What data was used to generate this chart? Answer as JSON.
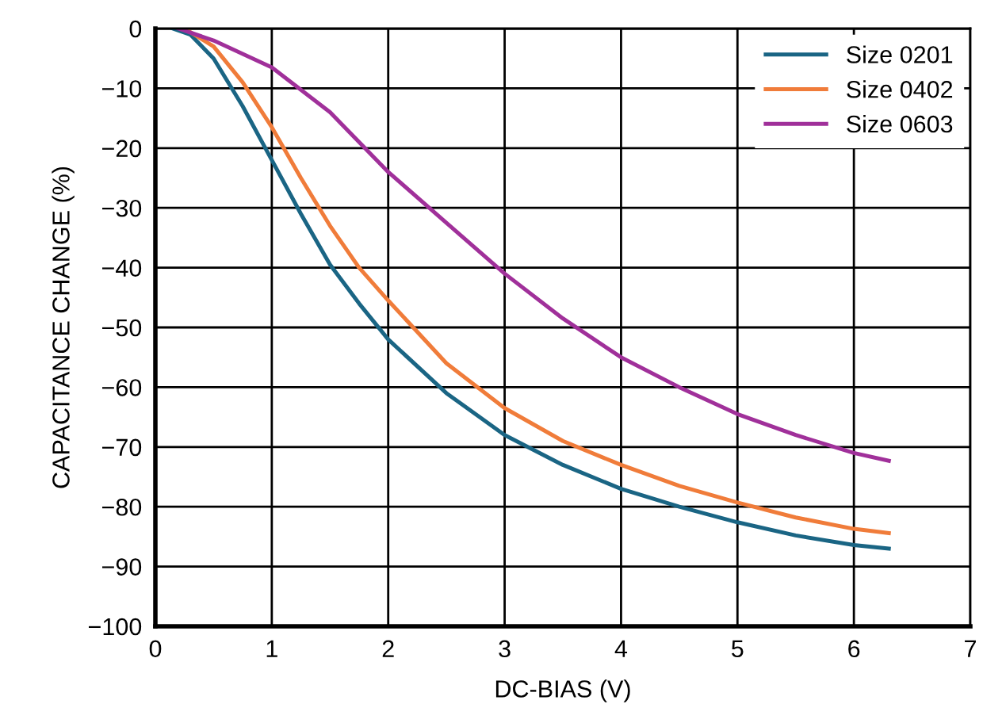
{
  "chart_data": {
    "type": "line",
    "xlabel": "DC-BIAS (V)",
    "ylabel": "CAPACITANCE CHANGE (%)",
    "xlim": [
      0,
      7
    ],
    "xticks": [
      0,
      1,
      2,
      3,
      4,
      5,
      6,
      7
    ],
    "ylim": [
      -100,
      0
    ],
    "yticks": [
      {
        "value": -100,
        "label": "−100"
      },
      {
        "value": -90,
        "label": "−90"
      },
      {
        "value": -80,
        "label": "−80"
      },
      {
        "value": -70,
        "label": "−70"
      },
      {
        "value": -60,
        "label": "−60"
      },
      {
        "value": -50,
        "label": "−50"
      },
      {
        "value": -40,
        "label": "−40"
      },
      {
        "value": -30,
        "label": "−30"
      },
      {
        "value": -20,
        "label": "−20"
      },
      {
        "value": -10,
        "label": "−10"
      },
      0
    ],
    "grid": true,
    "legend": "top right",
    "series": [
      {
        "name": "Size 0201",
        "color": "#1a6584",
        "x": [
          0.15,
          0.3,
          0.5,
          0.75,
          1,
          1.25,
          1.5,
          1.75,
          2,
          2.5,
          3,
          3.5,
          4,
          4.5,
          5,
          5.5,
          6,
          6.3
        ],
        "values": [
          0,
          -1,
          -5,
          -13,
          -22,
          -31,
          -39.5,
          -46,
          -52,
          -61,
          -68,
          -73,
          -77,
          -80,
          -82.6,
          -84.8,
          -86.4,
          -87
        ]
      },
      {
        "name": "Size 0402",
        "color": "#f07c3a",
        "x": [
          0.25,
          0.5,
          0.75,
          1,
          1.25,
          1.5,
          1.75,
          2,
          2.5,
          3,
          3.5,
          4,
          4.5,
          5,
          5.5,
          6,
          6.3
        ],
        "values": [
          0,
          -3,
          -9,
          -16.5,
          -25,
          -33,
          -40,
          -45.5,
          -56,
          -63.5,
          -69,
          -73,
          -76.5,
          -79.3,
          -81.8,
          -83.7,
          -84.4
        ]
      },
      {
        "name": "Size 0603",
        "color": "#a0309a",
        "x": [
          0.2,
          0.5,
          1,
          1.5,
          2,
          2.5,
          3,
          3.5,
          4,
          4.5,
          5,
          5.5,
          6,
          6.3
        ],
        "values": [
          0,
          -2,
          -6.5,
          -14,
          -24,
          -32.5,
          -41,
          -48.5,
          -55,
          -60,
          -64.5,
          -68,
          -71,
          -72.3
        ]
      }
    ]
  }
}
